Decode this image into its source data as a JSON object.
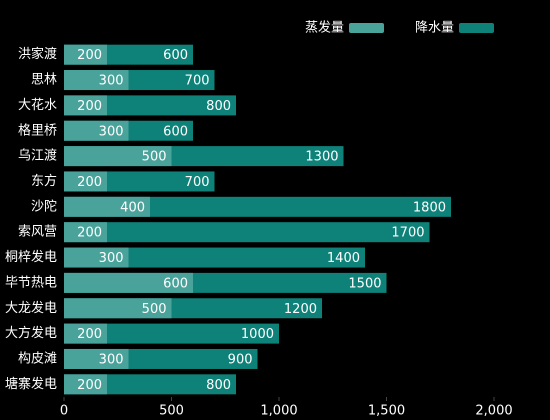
{
  "chart_data": {
    "type": "bar",
    "orientation": "horizontal",
    "overlap": true,
    "categories": [
      "洪家渡",
      "思林",
      "大花水",
      "格里桥",
      "乌江渡",
      "东方",
      "沙陀",
      "索风营",
      "桐梓发电",
      "毕节热电",
      "大龙发电",
      "大方发电",
      "构皮滩",
      "塘寨发电"
    ],
    "series": [
      {
        "name": "蒸发量",
        "color": "#4aa39b",
        "values": [
          200,
          300,
          200,
          300,
          500,
          200,
          400,
          200,
          300,
          600,
          500,
          200,
          300,
          200
        ]
      },
      {
        "name": "降水量",
        "color": "#0e8279",
        "values": [
          600,
          700,
          800,
          600,
          1300,
          700,
          1800,
          1700,
          1400,
          1500,
          1200,
          1000,
          900,
          800
        ]
      }
    ],
    "xlim": [
      0,
      2000
    ],
    "xticks": [
      0,
      500,
      {
        "value": 1000,
        "label": "1,000"
      },
      {
        "value": 1500,
        "label": "1,500"
      },
      {
        "value": 2000,
        "label": "2,000"
      }
    ],
    "legend": "top-right"
  }
}
